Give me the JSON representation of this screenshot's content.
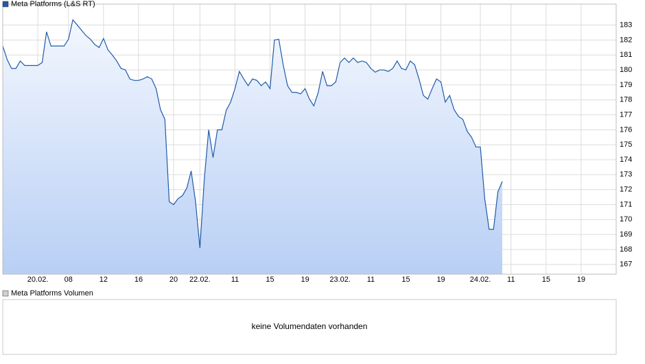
{
  "chart_data": {
    "type": "line",
    "series": [
      {
        "name": "Meta Platforms (L&S RT)",
        "color": "#1f5aa8",
        "values": [
          181.6,
          180.7,
          180.1,
          180.1,
          180.6,
          180.3,
          180.3,
          180.3,
          180.3,
          180.5,
          182.55,
          181.6,
          181.6,
          181.6,
          181.6,
          182.05,
          183.35,
          183.0,
          182.65,
          182.3,
          182.05,
          181.7,
          181.5,
          182.1,
          181.35,
          181.0,
          180.6,
          180.1,
          180.0,
          179.4,
          179.3,
          179.3,
          179.4,
          179.55,
          179.4,
          178.75,
          177.35,
          176.7,
          171.2,
          171.0,
          171.4,
          171.6,
          172.1,
          173.25,
          171.2,
          168.1,
          172.7,
          176.0,
          174.15,
          176.0,
          176.0,
          177.3,
          177.85,
          178.75,
          179.9,
          179.4,
          178.95,
          179.4,
          179.3,
          178.95,
          179.2,
          178.75,
          182.0,
          182.05,
          180.35,
          178.95,
          178.5,
          178.5,
          178.4,
          178.75,
          178.05,
          177.6,
          178.5,
          179.9,
          178.95,
          178.95,
          179.2,
          180.5,
          180.8,
          180.5,
          180.8,
          180.5,
          180.6,
          180.5,
          180.1,
          179.85,
          180.0,
          180.0,
          179.9,
          180.1,
          180.6,
          180.1,
          180.0,
          180.6,
          180.35,
          179.4,
          178.3,
          178.05,
          178.75,
          179.4,
          179.2,
          177.85,
          178.3,
          177.35,
          176.9,
          176.7,
          175.9,
          175.5,
          174.85,
          174.85,
          171.4,
          169.35,
          169.35,
          171.85,
          172.55,
          null,
          null,
          null,
          null,
          null,
          null,
          null,
          null,
          null,
          null,
          null,
          null,
          null,
          null,
          null,
          null,
          null,
          null,
          null,
          null,
          null,
          null,
          null,
          null,
          null,
          null
        ]
      }
    ],
    "categories": [
      null,
      null,
      null,
      null,
      null,
      null,
      null,
      null,
      "20.02.",
      null,
      null,
      null,
      null,
      null,
      null,
      "08",
      null,
      null,
      null,
      null,
      null,
      null,
      null,
      "12",
      null,
      null,
      null,
      null,
      null,
      null,
      null,
      "16",
      null,
      null,
      null,
      null,
      null,
      null,
      null,
      "20",
      null,
      null,
      null,
      null,
      null,
      "22.02.",
      null,
      null,
      null,
      null,
      null,
      null,
      null,
      "11",
      null,
      null,
      null,
      null,
      null,
      null,
      null,
      "15",
      null,
      null,
      null,
      null,
      null,
      null,
      null,
      "19",
      null,
      null,
      null,
      null,
      null,
      null,
      null,
      "23.02.",
      null,
      null,
      null,
      null,
      null,
      null,
      "11",
      null,
      null,
      null,
      null,
      null,
      null,
      null,
      "15",
      null,
      null,
      null,
      null,
      null,
      null,
      null,
      "19",
      null,
      null,
      null,
      null,
      null,
      null,
      null,
      null,
      "24.02.",
      null,
      null,
      null,
      null,
      null,
      null,
      "11",
      null,
      null,
      null,
      null,
      null,
      null,
      null,
      "15",
      null,
      null,
      null,
      null,
      null,
      null,
      null,
      "19",
      null,
      null,
      null,
      null,
      null,
      null,
      null,
      null
    ],
    "ylim": [
      166.35,
      184.4
    ],
    "yticks": [
      167,
      168,
      169,
      170,
      171,
      172,
      173,
      174,
      175,
      176,
      177,
      178,
      179,
      180,
      181,
      182,
      183
    ],
    "grid": true
  },
  "volume_panel": {
    "legend": "Meta Platforms Volumen",
    "message": "keine Volumendaten vorhanden"
  }
}
